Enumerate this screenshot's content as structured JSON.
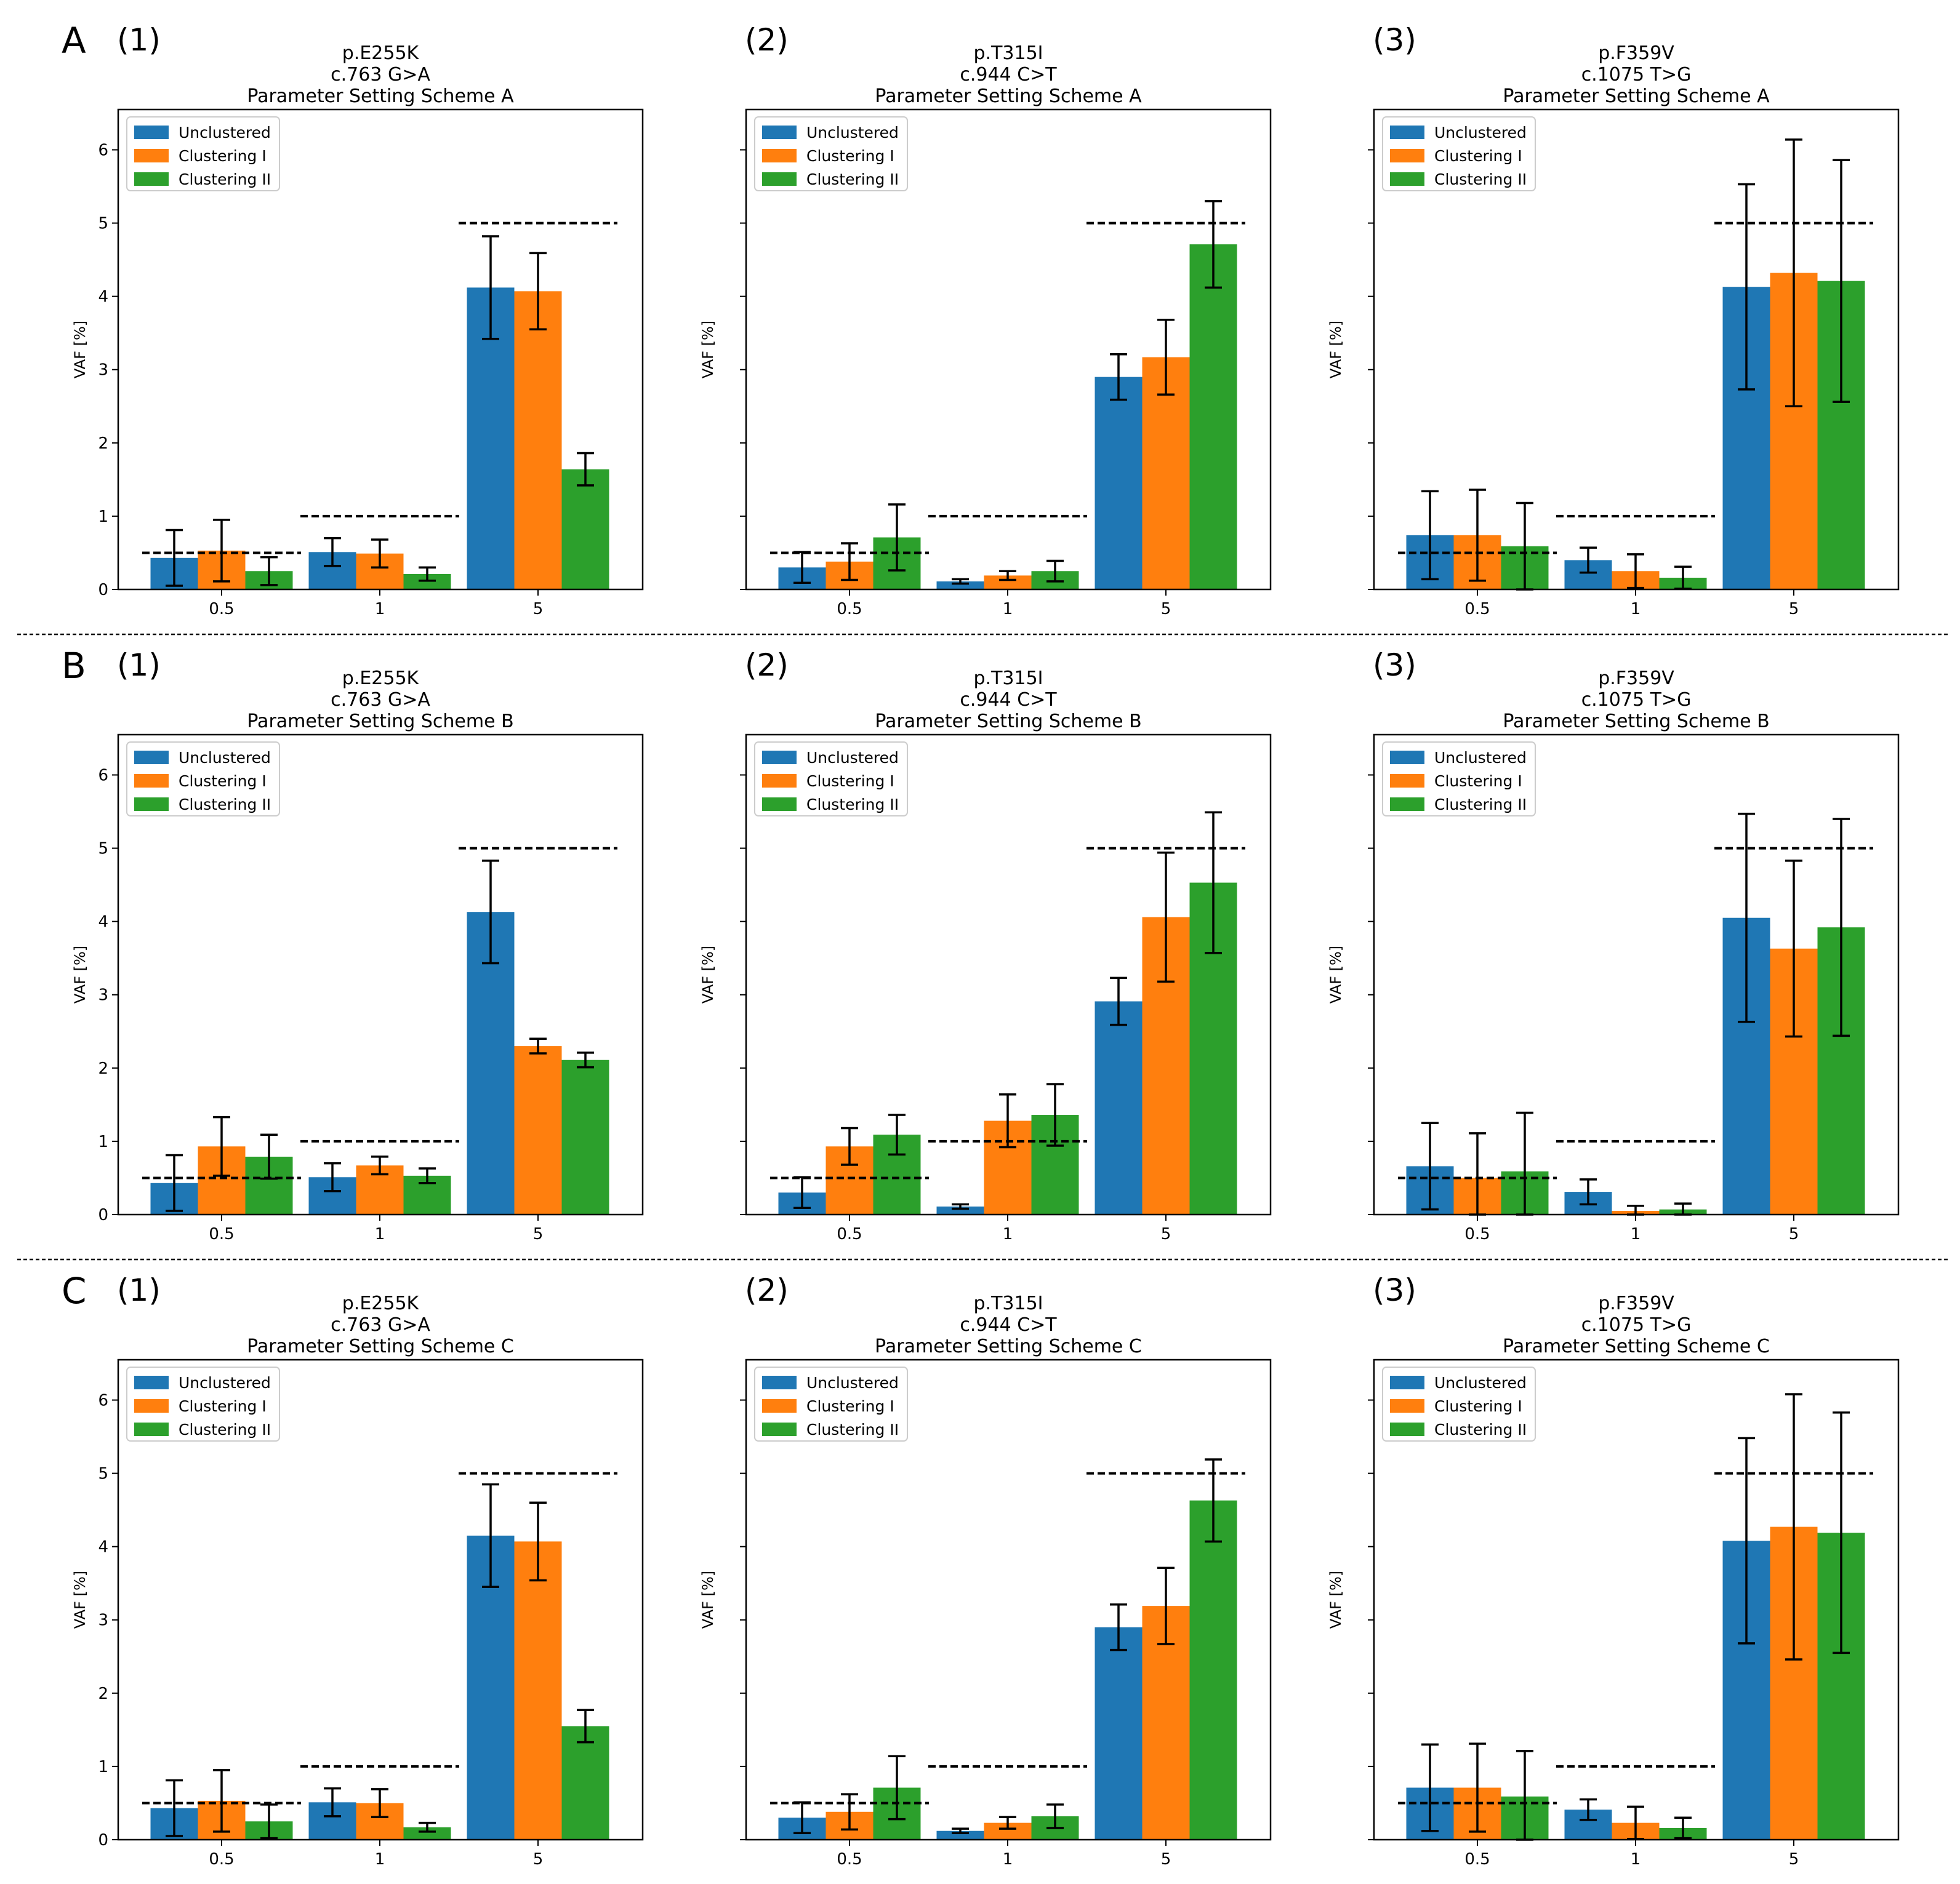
{
  "figure": {
    "colors": {
      "Unclustered": "#1f77b4",
      "Clustering I": "#ff7f0e",
      "Clustering II": "#2ca02c",
      "axis": "#000000",
      "background": "#ffffff"
    }
  },
  "rows": [
    {
      "letter": "A"
    },
    {
      "letter": "B"
    },
    {
      "letter": "C"
    }
  ],
  "chart_data": [
    {
      "row": "A",
      "panel": "(1)",
      "type": "bar",
      "title": [
        "p.E255K",
        "c.763 G>A",
        "Parameter Setting Scheme A"
      ],
      "xlabel": "",
      "ylabel": "VAF [%]",
      "ylim": [
        0,
        6.55
      ],
      "yticks": [
        "0",
        "1",
        "2",
        "3",
        "4",
        "5",
        "6"
      ],
      "categories": [
        "0.5",
        "1",
        "5"
      ],
      "expected": [
        0.5,
        1,
        5
      ],
      "legend": [
        "Unclustered",
        "Clustering I",
        "Clustering II"
      ],
      "legend_position": "upper left",
      "series": [
        {
          "name": "Unclustered",
          "values": [
            0.43,
            0.51,
            4.12
          ],
          "errors": [
            0.38,
            0.19,
            0.7
          ]
        },
        {
          "name": "Clustering I",
          "values": [
            0.53,
            0.49,
            4.07
          ],
          "errors": [
            0.42,
            0.19,
            0.52
          ]
        },
        {
          "name": "Clustering II",
          "values": [
            0.25,
            0.21,
            1.64
          ],
          "errors": [
            0.19,
            0.09,
            0.22
          ]
        }
      ]
    },
    {
      "row": "A",
      "panel": "(2)",
      "type": "bar",
      "title": [
        "p.T315I",
        "c.944 C>T",
        "Parameter Setting Scheme A"
      ],
      "xlabel": "",
      "ylabel": "VAF [%]",
      "ylim": [
        0,
        6.55
      ],
      "yticks": [
        "",
        "",
        "",
        "",
        "",
        "",
        ""
      ],
      "categories": [
        "0.5",
        "1",
        "5"
      ],
      "expected": [
        0.5,
        1,
        5
      ],
      "legend": [
        "Unclustered",
        "Clustering I",
        "Clustering II"
      ],
      "legend_position": "upper left",
      "series": [
        {
          "name": "Unclustered",
          "values": [
            0.3,
            0.11,
            2.9
          ],
          "errors": [
            0.21,
            0.03,
            0.31
          ]
        },
        {
          "name": "Clustering I",
          "values": [
            0.38,
            0.19,
            3.17
          ],
          "errors": [
            0.25,
            0.06,
            0.51
          ]
        },
        {
          "name": "Clustering II",
          "values": [
            0.71,
            0.25,
            4.71
          ],
          "errors": [
            0.45,
            0.14,
            0.59
          ]
        }
      ]
    },
    {
      "row": "A",
      "panel": "(3)",
      "type": "bar",
      "title": [
        "p.F359V",
        "c.1075 T>G",
        "Parameter Setting Scheme A"
      ],
      "xlabel": "",
      "ylabel": "VAF [%]",
      "ylim": [
        0,
        6.55
      ],
      "yticks": [
        "",
        "",
        "",
        "",
        "",
        "",
        ""
      ],
      "categories": [
        "0.5",
        "1",
        "5"
      ],
      "expected": [
        0.5,
        1,
        5
      ],
      "legend": [
        "Unclustered",
        "Clustering I",
        "Clustering II"
      ],
      "legend_position": "upper left",
      "series": [
        {
          "name": "Unclustered",
          "values": [
            0.74,
            0.4,
            4.13
          ],
          "errors": [
            0.6,
            0.17,
            1.4
          ]
        },
        {
          "name": "Clustering I",
          "values": [
            0.74,
            0.25,
            4.32
          ],
          "errors": [
            0.62,
            0.23,
            1.82
          ]
        },
        {
          "name": "Clustering II",
          "values": [
            0.59,
            0.16,
            4.21
          ],
          "errors": [
            0.59,
            0.15,
            1.65
          ]
        }
      ]
    },
    {
      "row": "B",
      "panel": "(1)",
      "type": "bar",
      "title": [
        "p.E255K",
        "c.763 G>A",
        "Parameter Setting Scheme B"
      ],
      "xlabel": "",
      "ylabel": "VAF [%]",
      "ylim": [
        0,
        6.55
      ],
      "yticks": [
        "0",
        "1",
        "2",
        "3",
        "4",
        "5",
        "6"
      ],
      "categories": [
        "0.5",
        "1",
        "5"
      ],
      "expected": [
        0.5,
        1,
        5
      ],
      "legend": [
        "Unclustered",
        "Clustering I",
        "Clustering II"
      ],
      "legend_position": "upper left",
      "series": [
        {
          "name": "Unclustered",
          "values": [
            0.43,
            0.51,
            4.13
          ],
          "errors": [
            0.38,
            0.19,
            0.7
          ]
        },
        {
          "name": "Clustering I",
          "values": [
            0.93,
            0.67,
            2.3
          ],
          "errors": [
            0.4,
            0.12,
            0.1
          ]
        },
        {
          "name": "Clustering II",
          "values": [
            0.79,
            0.53,
            2.11
          ],
          "errors": [
            0.3,
            0.1,
            0.1
          ]
        }
      ]
    },
    {
      "row": "B",
      "panel": "(2)",
      "type": "bar",
      "title": [
        "p.T315I",
        "c.944 C>T",
        "Parameter Setting Scheme B"
      ],
      "xlabel": "",
      "ylabel": "VAF [%]",
      "ylim": [
        0,
        6.55
      ],
      "yticks": [
        "",
        "",
        "",
        "",
        "",
        "",
        ""
      ],
      "categories": [
        "0.5",
        "1",
        "5"
      ],
      "expected": [
        0.5,
        1,
        5
      ],
      "legend": [
        "Unclustered",
        "Clustering I",
        "Clustering II"
      ],
      "legend_position": "upper left",
      "series": [
        {
          "name": "Unclustered",
          "values": [
            0.3,
            0.11,
            2.91
          ],
          "errors": [
            0.21,
            0.03,
            0.32
          ]
        },
        {
          "name": "Clustering I",
          "values": [
            0.93,
            1.28,
            4.06
          ],
          "errors": [
            0.25,
            0.36,
            0.88
          ]
        },
        {
          "name": "Clustering II",
          "values": [
            1.09,
            1.36,
            4.53
          ],
          "errors": [
            0.27,
            0.42,
            0.96
          ]
        }
      ]
    },
    {
      "row": "B",
      "panel": "(3)",
      "type": "bar",
      "title": [
        "p.F359V",
        "c.1075 T>G",
        "Parameter Setting Scheme B"
      ],
      "xlabel": "",
      "ylabel": "VAF [%]",
      "ylim": [
        0,
        6.55
      ],
      "yticks": [
        "",
        "",
        "",
        "",
        "",
        "",
        ""
      ],
      "categories": [
        "0.5",
        "1",
        "5"
      ],
      "expected": [
        0.5,
        1,
        5
      ],
      "legend": [
        "Unclustered",
        "Clustering I",
        "Clustering II"
      ],
      "legend_position": "upper left",
      "series": [
        {
          "name": "Unclustered",
          "values": [
            0.66,
            0.31,
            4.05
          ],
          "errors": [
            0.59,
            0.17,
            1.42
          ]
        },
        {
          "name": "Clustering I",
          "values": [
            0.5,
            0.05,
            3.63
          ],
          "errors": [
            0.61,
            0.07,
            1.2
          ]
        },
        {
          "name": "Clustering II",
          "values": [
            0.59,
            0.07,
            3.92
          ],
          "errors": [
            0.8,
            0.08,
            1.48
          ]
        }
      ]
    },
    {
      "row": "C",
      "panel": "(1)",
      "type": "bar",
      "title": [
        "p.E255K",
        "c.763 G>A",
        "Parameter Setting Scheme C"
      ],
      "xlabel": "",
      "ylabel": "VAF [%]",
      "ylim": [
        0,
        6.55
      ],
      "yticks": [
        "0",
        "1",
        "2",
        "3",
        "4",
        "5",
        "6"
      ],
      "categories": [
        "0.5",
        "1",
        "5"
      ],
      "expected": [
        0.5,
        1,
        5
      ],
      "legend": [
        "Unclustered",
        "Clustering I",
        "Clustering II"
      ],
      "legend_position": "upper left",
      "series": [
        {
          "name": "Unclustered",
          "values": [
            0.43,
            0.51,
            4.15
          ],
          "errors": [
            0.38,
            0.19,
            0.7
          ]
        },
        {
          "name": "Clustering I",
          "values": [
            0.53,
            0.5,
            4.07
          ],
          "errors": [
            0.42,
            0.19,
            0.53
          ]
        },
        {
          "name": "Clustering II",
          "values": [
            0.25,
            0.17,
            1.55
          ],
          "errors": [
            0.23,
            0.06,
            0.22
          ]
        }
      ]
    },
    {
      "row": "C",
      "panel": "(2)",
      "type": "bar",
      "title": [
        "p.T315I",
        "c.944 C>T",
        "Parameter Setting Scheme C"
      ],
      "xlabel": "",
      "ylabel": "VAF [%]",
      "ylim": [
        0,
        6.55
      ],
      "yticks": [
        "",
        "",
        "",
        "",
        "",
        "",
        ""
      ],
      "categories": [
        "0.5",
        "1",
        "5"
      ],
      "expected": [
        0.5,
        1,
        5
      ],
      "legend": [
        "Unclustered",
        "Clustering I",
        "Clustering II"
      ],
      "legend_position": "upper left",
      "series": [
        {
          "name": "Unclustered",
          "values": [
            0.3,
            0.12,
            2.9
          ],
          "errors": [
            0.21,
            0.03,
            0.31
          ]
        },
        {
          "name": "Clustering I",
          "values": [
            0.38,
            0.23,
            3.19
          ],
          "errors": [
            0.24,
            0.08,
            0.52
          ]
        },
        {
          "name": "Clustering II",
          "values": [
            0.71,
            0.32,
            4.63
          ],
          "errors": [
            0.43,
            0.16,
            0.56
          ]
        }
      ]
    },
    {
      "row": "C",
      "panel": "(3)",
      "type": "bar",
      "title": [
        "p.F359V",
        "c.1075 T>G",
        "Parameter Setting Scheme C"
      ],
      "xlabel": "",
      "ylabel": "VAF [%]",
      "ylim": [
        0,
        6.55
      ],
      "yticks": [
        "",
        "",
        "",
        "",
        "",
        "",
        ""
      ],
      "categories": [
        "0.5",
        "1",
        "5"
      ],
      "expected": [
        0.5,
        1,
        5
      ],
      "legend": [
        "Unclustered",
        "Clustering I",
        "Clustering II"
      ],
      "legend_position": "upper left",
      "series": [
        {
          "name": "Unclustered",
          "values": [
            0.71,
            0.41,
            4.08
          ],
          "errors": [
            0.59,
            0.14,
            1.4
          ]
        },
        {
          "name": "Clustering I",
          "values": [
            0.71,
            0.23,
            4.27
          ],
          "errors": [
            0.6,
            0.22,
            1.81
          ]
        },
        {
          "name": "Clustering II",
          "values": [
            0.59,
            0.16,
            4.19
          ],
          "errors": [
            0.62,
            0.14,
            1.64
          ]
        }
      ]
    }
  ]
}
